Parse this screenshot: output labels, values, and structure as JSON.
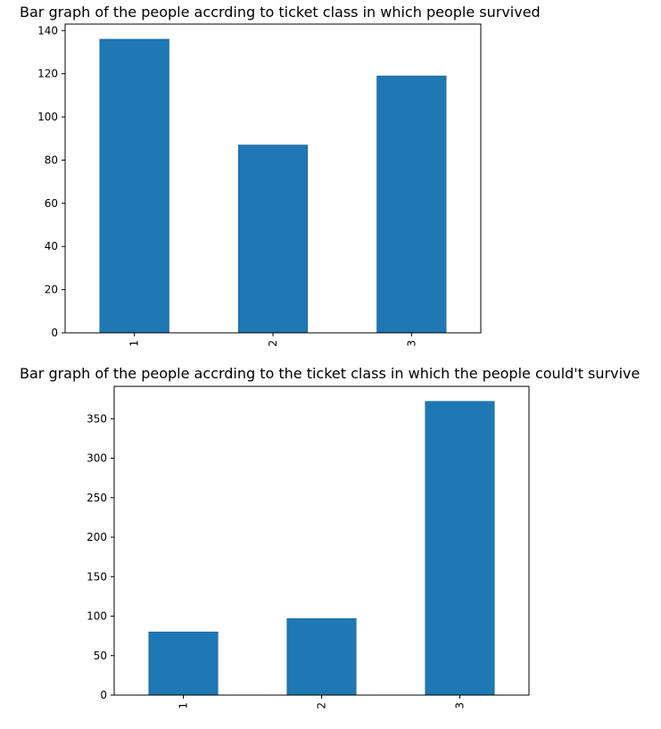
{
  "chart_data": [
    {
      "type": "bar",
      "title": "Bar graph of the people accrding to ticket class in which people survived",
      "xlabel": "",
      "ylabel": "",
      "categories": [
        "1",
        "2",
        "3"
      ],
      "values": [
        136,
        87,
        119
      ],
      "ylim": [
        0,
        143
      ],
      "yticks": [
        "0",
        "20",
        "40",
        "60",
        "80",
        "100",
        "120",
        "140"
      ],
      "grid": false,
      "legend": "none",
      "bar_color": "#1f77b4"
    },
    {
      "type": "bar",
      "title": "Bar graph of the people accrding to the ticket class in which the people could't survive",
      "xlabel": "",
      "ylabel": "",
      "categories": [
        "1",
        "2",
        "3"
      ],
      "values": [
        80,
        97,
        372
      ],
      "ylim": [
        0,
        391
      ],
      "yticks": [
        "0",
        "50",
        "100",
        "150",
        "200",
        "250",
        "300",
        "350"
      ],
      "grid": false,
      "legend": "none",
      "bar_color": "#1f77b4"
    }
  ]
}
